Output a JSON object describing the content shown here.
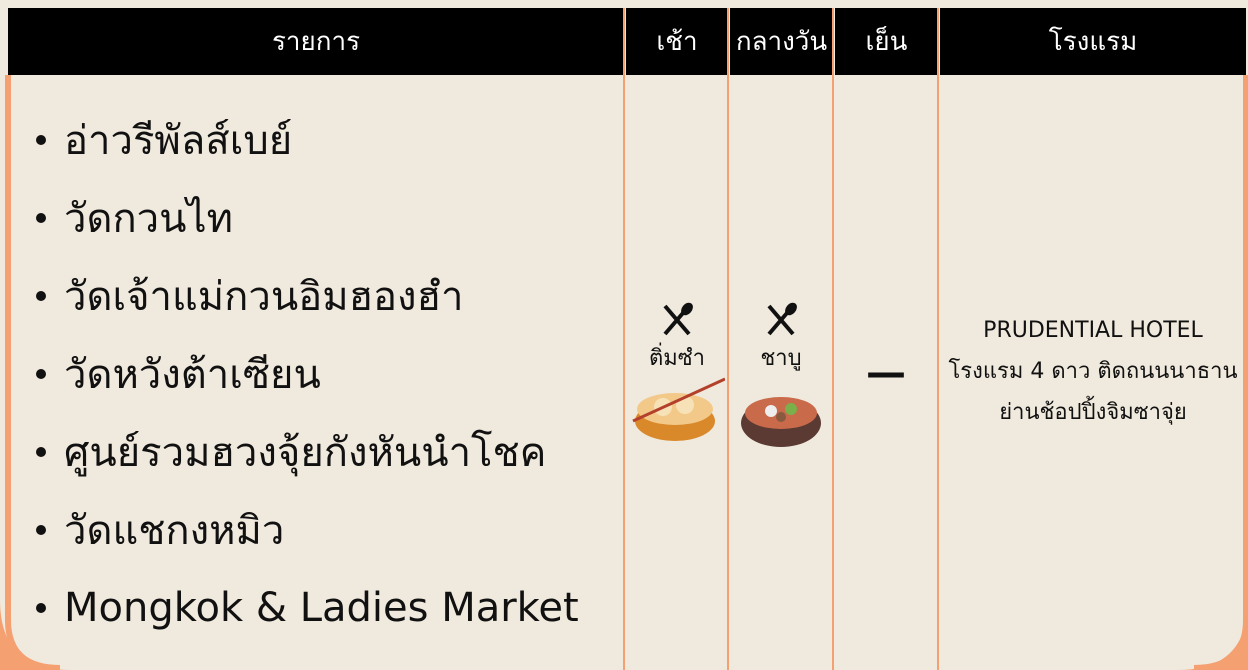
{
  "table": {
    "header": [
      "รายการ",
      "เช้า",
      "กลางวัน",
      "เย็น",
      "โรงแรม"
    ],
    "items": [
      "อ่าวรีพัลส์เบย์",
      "วัดกวนไท",
      "วัดเจ้าแม่กวนอิมฮองฮำ",
      "วัดหวังต้าเซียน",
      "ศูนย์รวมฮวงจุ้ยกังหันนำโชค",
      "วัดแชกงหมิว",
      "Mongkok & Ladies Market"
    ],
    "breakfast": "ติ่มซำ",
    "lunch": "ชาบู",
    "dinner": "—",
    "hotel": [
      "PRUDENTIAL HOTEL",
      "โรงแรม 4 ดาว ติดถนนนาธาน",
      "ย่านช้อปปิ้งจิมซาจุ่ย"
    ]
  }
}
